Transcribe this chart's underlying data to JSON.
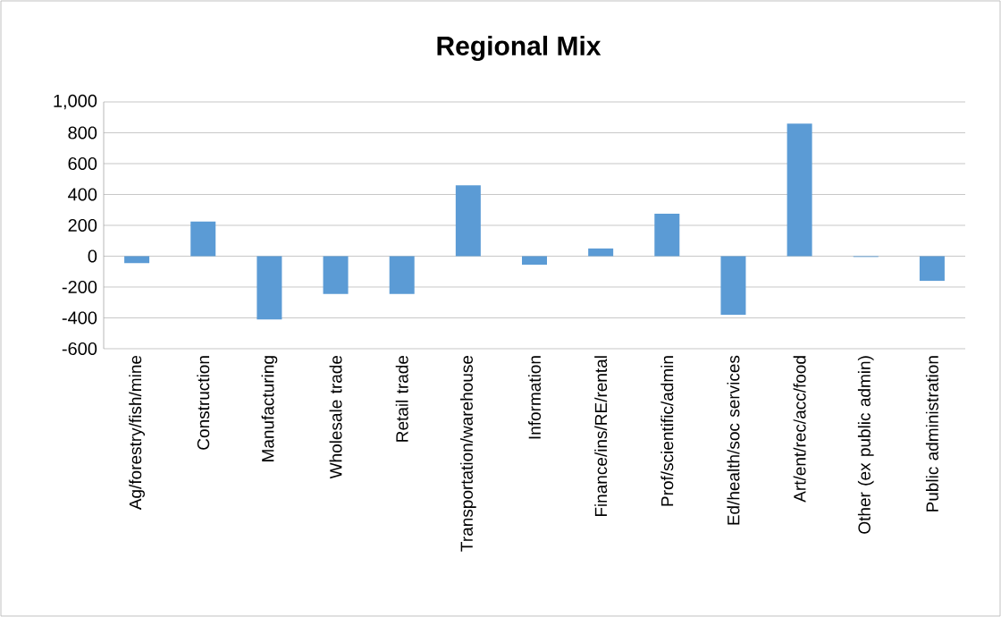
{
  "chart_data": {
    "type": "bar",
    "title": "Regional Mix",
    "categories": [
      "Ag/forestry/fish/mine",
      "Construction",
      "Manufacturing",
      "Wholesale trade",
      "Retail trade",
      "Transportation/warehouse",
      "Information",
      "Finance/ins/RE/rental",
      "Prof/scientific/admin",
      "Ed/health/soc services",
      "Art/ent/rec/acc/food",
      "Other (ex public admin)",
      "Public administration"
    ],
    "values": [
      -45,
      225,
      -410,
      -245,
      -245,
      460,
      -55,
      50,
      275,
      -380,
      860,
      -5,
      -160
    ],
    "color": "#5b9bd5",
    "ylim": [
      -600,
      1000
    ],
    "yticks": [
      -600,
      -400,
      -200,
      0,
      200,
      400,
      600,
      800,
      {
        "value": 1000,
        "label": "1,000"
      }
    ],
    "grid": "y"
  }
}
